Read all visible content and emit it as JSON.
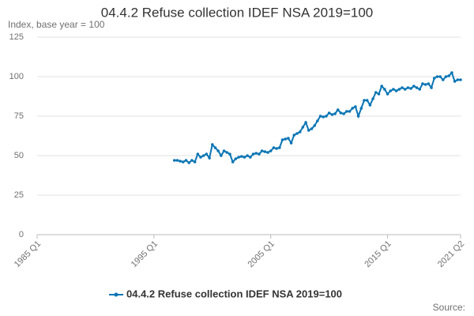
{
  "chart_data": {
    "type": "line",
    "title": "04.4.2 Refuse collection IDEF NSA 2019=100",
    "subtitle": "Index, base year = 100",
    "source": "Source:",
    "x": [
      1996.75,
      1997,
      1997.25,
      1997.5,
      1997.75,
      1998,
      1998.25,
      1998.5,
      1998.75,
      1999,
      1999.25,
      1999.5,
      1999.75,
      2000,
      2000.25,
      2000.5,
      2000.75,
      2001,
      2001.25,
      2001.5,
      2001.75,
      2002,
      2002.25,
      2002.5,
      2002.75,
      2003,
      2003.25,
      2003.5,
      2003.75,
      2004,
      2004.25,
      2004.5,
      2004.75,
      2005,
      2005.25,
      2005.5,
      2005.75,
      2006,
      2006.25,
      2006.5,
      2006.75,
      2007,
      2007.25,
      2007.5,
      2007.75,
      2008,
      2008.25,
      2008.5,
      2008.75,
      2009,
      2009.25,
      2009.5,
      2009.75,
      2010,
      2010.25,
      2010.5,
      2010.75,
      2011,
      2011.25,
      2011.5,
      2011.75,
      2012,
      2012.25,
      2012.5,
      2012.75,
      2013,
      2013.25,
      2013.5,
      2013.75,
      2014,
      2014.25,
      2014.5,
      2014.75,
      2015,
      2015.25,
      2015.5,
      2015.75,
      2016,
      2016.25,
      2016.5,
      2016.75,
      2017,
      2017.25,
      2017.5,
      2017.75,
      2018,
      2018.25,
      2018.5,
      2018.75,
      2019,
      2019.25,
      2019.5,
      2019.75,
      2020,
      2020.25,
      2020.5,
      2020.75,
      2021,
      2021.25
    ],
    "series": [
      {
        "name": "04.4.2 Refuse collection IDEF NSA 2019=100",
        "color": "#0a75b4",
        "values": [
          47,
          47,
          46.5,
          46,
          47,
          45.5,
          47,
          46,
          51,
          49,
          50,
          51,
          48.5,
          57,
          55,
          53,
          50,
          53,
          52,
          51,
          46,
          48,
          49,
          49.5,
          49,
          50,
          49,
          51,
          51.5,
          51,
          53,
          52.5,
          52,
          53,
          55,
          54.5,
          55,
          60,
          60.5,
          61,
          58,
          63,
          64,
          65,
          68,
          71,
          66,
          67,
          69,
          72,
          75,
          74.5,
          75,
          77,
          76,
          76.5,
          79,
          77,
          76.5,
          78,
          78,
          80,
          81,
          75,
          80,
          85,
          85,
          82,
          86,
          90,
          89,
          94,
          92,
          89,
          91,
          92,
          91,
          92,
          93,
          92,
          93,
          92.5,
          94,
          93,
          92,
          95.5,
          95,
          95.5,
          93,
          99,
          100,
          100,
          98,
          100,
          100.5,
          102.5,
          97,
          98,
          98
        ]
      }
    ],
    "xlim": [
      1985,
      2021.25
    ],
    "xticks": [
      {
        "value": 1985,
        "label": "1985 Q1"
      },
      {
        "value": 1995,
        "label": "1995 Q1"
      },
      {
        "value": 2005,
        "label": "2005 Q1"
      },
      {
        "value": 2015,
        "label": "2015 Q1"
      },
      {
        "value": 2021.25,
        "label": "2021 Q2"
      }
    ],
    "ylim": [
      0,
      125
    ],
    "yticks": [
      0,
      25,
      50,
      75,
      100,
      125
    ],
    "grid": true
  }
}
